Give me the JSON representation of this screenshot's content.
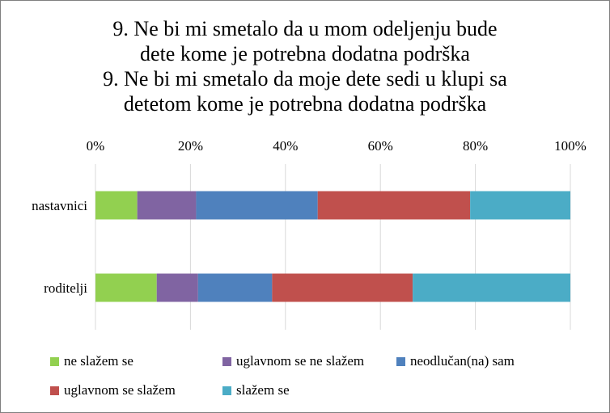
{
  "chart_data": {
    "type": "bar",
    "orientation": "horizontal",
    "stacked": true,
    "percent": true,
    "title_lines": [
      "9. Ne bi mi smetalo da u mom odeljenju bude",
      "dete kome je potrebna dodatna podrška",
      "9. Ne bi mi smetalo da moje dete sedi u klupi sa",
      "detetom kome je potrebna dodatna podrška"
    ],
    "categories": [
      "nastavnici",
      "roditelji"
    ],
    "series": [
      {
        "name": "ne slažem se",
        "color": "#92d050",
        "values": [
          8.8,
          12.9
        ]
      },
      {
        "name": "uglavnom se ne slažem",
        "color": "#8064a2",
        "values": [
          12.4,
          8.7
        ]
      },
      {
        "name": "neodlučan(na) sam",
        "color": "#4f81bd",
        "values": [
          25.6,
          15.6
        ]
      },
      {
        "name": "uglavnom se slažem",
        "color": "#c0504d",
        "values": [
          32.1,
          29.6
        ]
      },
      {
        "name": "slažem se",
        "color": "#4bacc6",
        "values": [
          21.1,
          33.2
        ]
      }
    ],
    "xlim": [
      0,
      100
    ],
    "x_ticks": [
      "0%",
      "20%",
      "40%",
      "60%",
      "80%",
      "100%"
    ],
    "axis_position": "top",
    "grid": true,
    "gridline_color": "#d9d9d9",
    "legend_position": "bottom"
  }
}
